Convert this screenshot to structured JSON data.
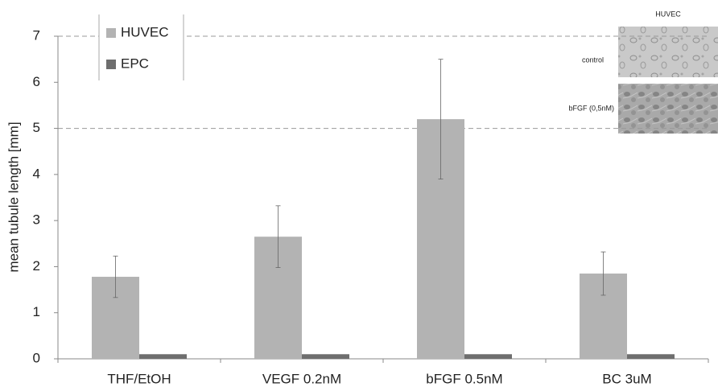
{
  "chart_data": {
    "type": "bar",
    "y_label": "mean tubule length [mm]",
    "categories": [
      "THF/EtOH",
      "VEGF 0.2nM",
      "bFGF 0.5nM",
      "BC 3uM"
    ],
    "series": [
      {
        "name": "HUVEC",
        "color": "#b3b3b3",
        "values": [
          1.78,
          2.65,
          5.2,
          1.85
        ],
        "errors": [
          0.45,
          0.67,
          1.3,
          0.47
        ]
      },
      {
        "name": "EPC",
        "color": "#6e6e6e",
        "values": [
          0.1,
          0.1,
          0.1,
          0.1
        ]
      }
    ],
    "ylim": [
      0,
      7
    ],
    "yticks": [
      0,
      1,
      2,
      3,
      4,
      5,
      6,
      7
    ],
    "grid_lines": [
      5,
      7
    ],
    "legend": "upper left",
    "inset": {
      "title": "HUVEC",
      "labels": [
        "control",
        "bFGF (0,5nM)"
      ]
    }
  }
}
